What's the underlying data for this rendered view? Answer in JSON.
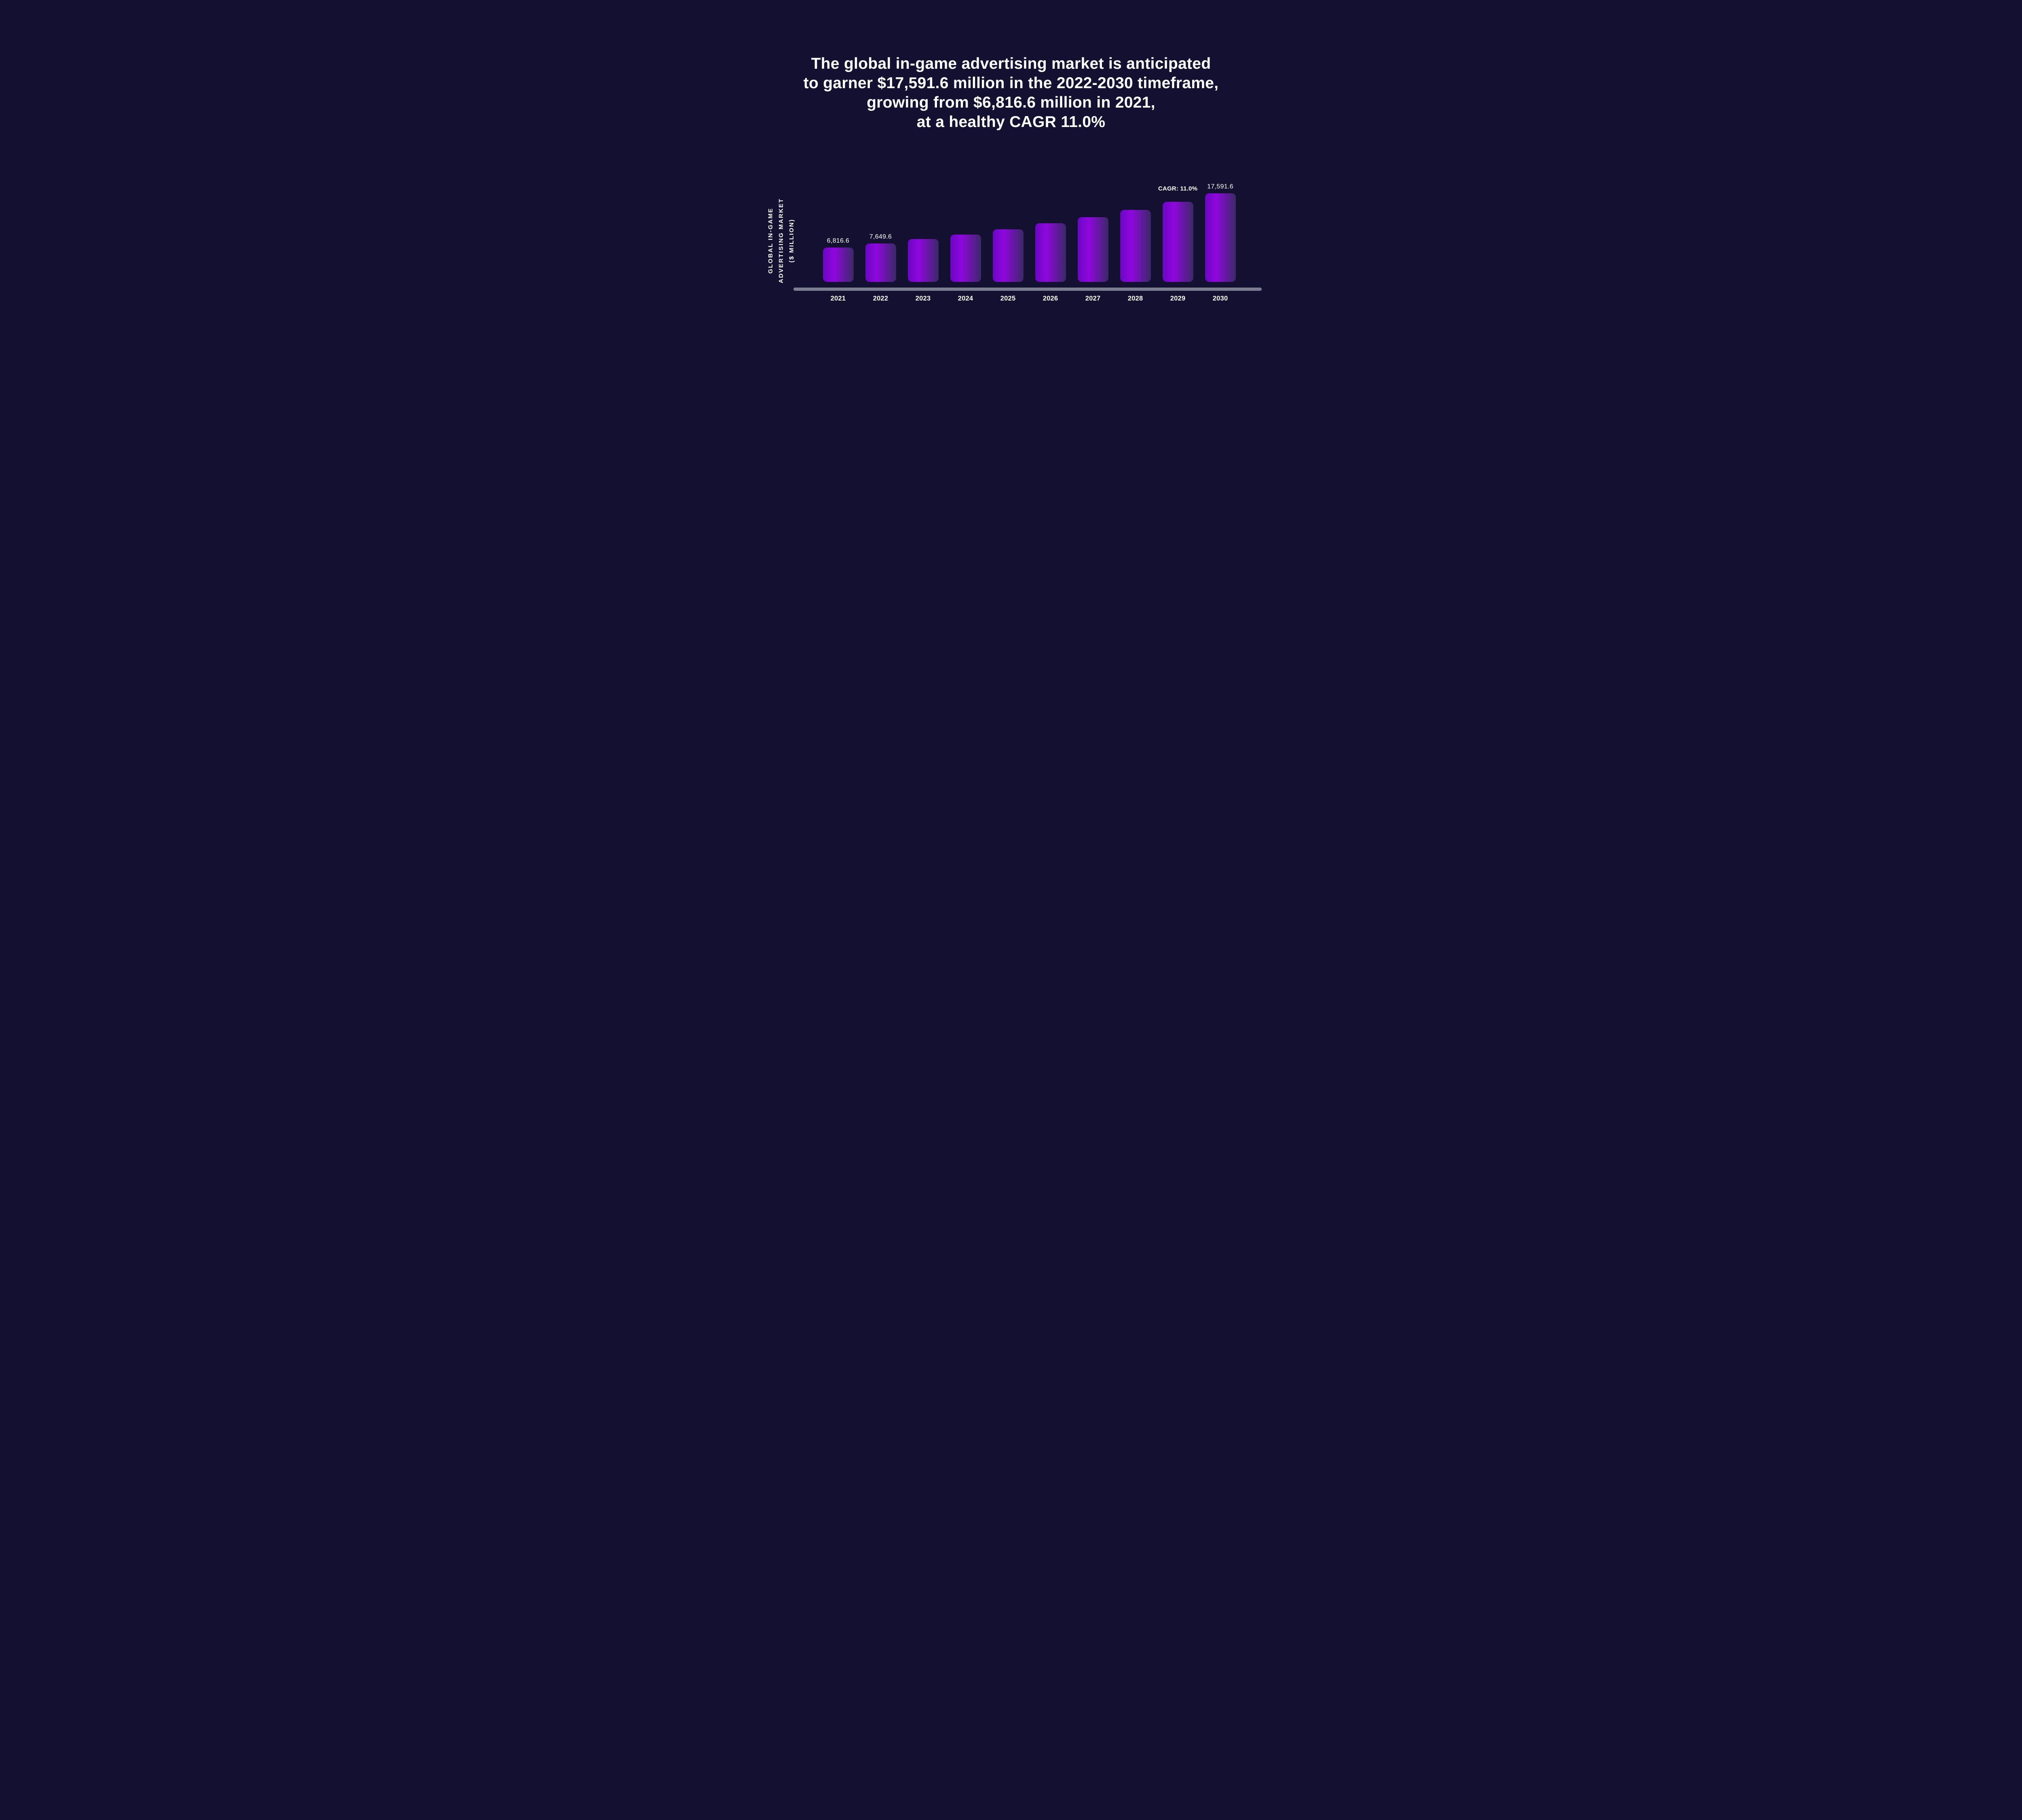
{
  "title": {
    "lines": [
      "The global in-game advertising market is anticipated",
      "to garner $17,591.6 million in the 2022-2030 timeframe,",
      "growing from $6,816.6 million in 2021,",
      "at a healthy CAGR 11.0%"
    ]
  },
  "y_axis": {
    "label_lines": [
      "GLOBAL IN-GAME",
      "ADVERTISING MARKET",
      "($ MILLION)"
    ]
  },
  "annotations": {
    "cagr_label": "CAGR: 11.0%",
    "cagr_above_category": "2029"
  },
  "chart_data": {
    "type": "bar",
    "title": "Global in-game advertising market ($ million), 2021-2030",
    "xlabel": "",
    "ylabel": "GLOBAL IN-GAME ADVERTISING MARKET ($ MILLION)",
    "categories": [
      "2021",
      "2022",
      "2023",
      "2024",
      "2025",
      "2026",
      "2027",
      "2028",
      "2029",
      "2030"
    ],
    "values": [
      6816.6,
      7649.6,
      8491.1,
      9425.1,
      10461.9,
      11612.7,
      12890.1,
      14308.0,
      15881.9,
      17591.6
    ],
    "value_labels": {
      "2021": "6,816.6",
      "2022": "7,649.6",
      "2030": "17,591.6"
    },
    "cagr_percent": 11.0,
    "ylim": [
      0,
      17591.6
    ],
    "grid": false,
    "legend": "none"
  },
  "colors": {
    "background": "#141031",
    "bar_gradient_start": "#6a07c2",
    "bar_gradient_bright": "#8f07de",
    "bar_gradient_end": "#3a2a66",
    "bar_gradient_bright_stop_percent": 36,
    "axis_line": "#7b7b92",
    "text": "#ffffff"
  }
}
